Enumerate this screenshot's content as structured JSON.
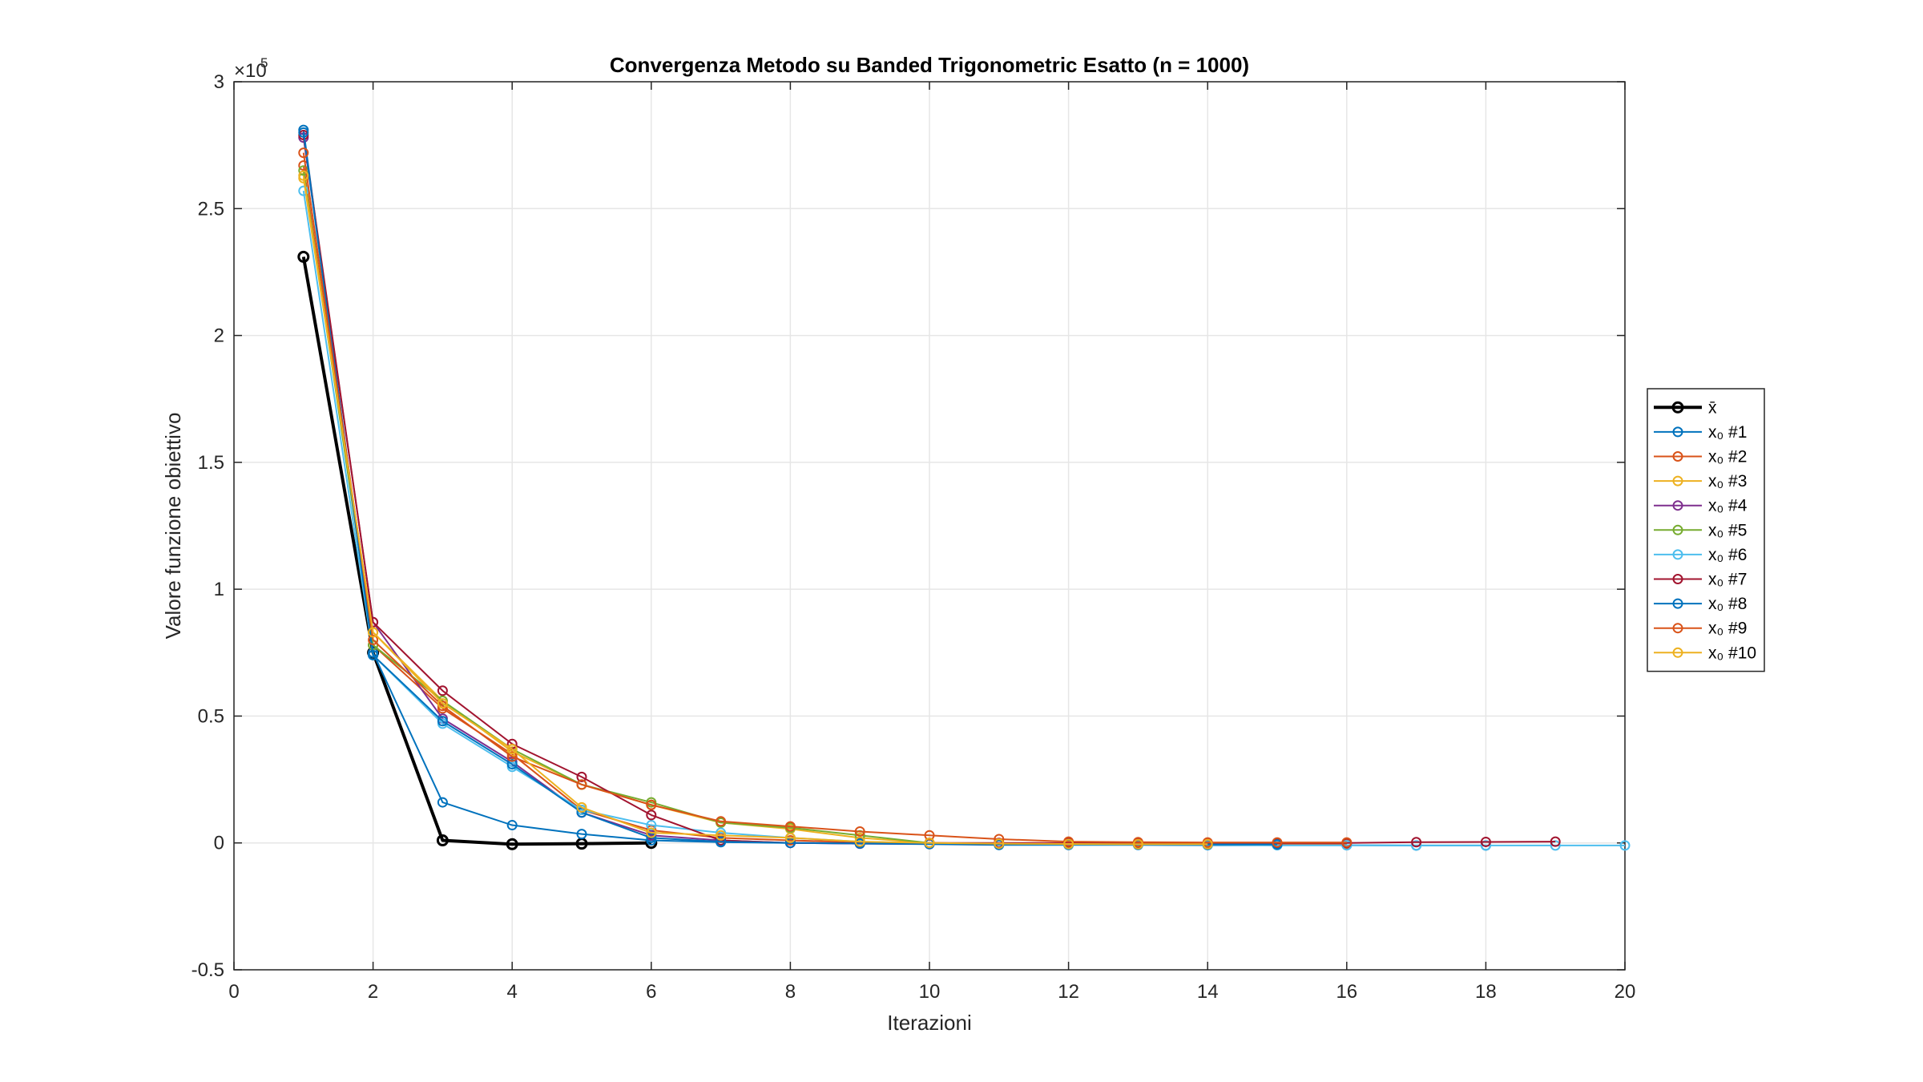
{
  "chart_data": {
    "type": "line",
    "title": "Convergenza Metodo su Banded Trigonometric Esatto (n = 1000)",
    "xlabel": "Iterazioni",
    "ylabel": "Valore funzione obiettivo",
    "y_exponent_label": "×10",
    "y_exponent_power": "5",
    "xlim": [
      0,
      20
    ],
    "ylim": [
      -0.5,
      3
    ],
    "xticks": [
      "0",
      "2",
      "4",
      "6",
      "8",
      "10",
      "12",
      "14",
      "16",
      "18",
      "20"
    ],
    "yticks": [
      "-0.5",
      "0",
      "0.5",
      "1",
      "1.5",
      "2",
      "2.5",
      "3"
    ],
    "y_scale_note": "values in units of 1e5",
    "grid": true,
    "legend_position": "outside-right",
    "series": [
      {
        "name": "x̄",
        "color": "#000000",
        "bold": true,
        "x": [
          1,
          2,
          3,
          4,
          5,
          6
        ],
        "y": [
          2.31,
          0.75,
          0.01,
          -0.005,
          -0.003,
          0.0
        ]
      },
      {
        "name": "x₀ #1",
        "color": "#0072BD",
        "x": [
          1,
          2,
          3,
          4,
          5,
          6,
          7,
          8,
          9,
          10,
          11,
          12,
          13,
          14,
          15,
          16,
          17,
          18
        ],
        "y": [
          2.81,
          0.75,
          0.16,
          0.07,
          0.035,
          0.01,
          0.003,
          0.0,
          -0.003,
          -0.005,
          -0.008,
          -0.008,
          -0.008,
          -0.009,
          -0.009,
          -0.009,
          -0.01,
          -0.01
        ]
      },
      {
        "name": "x₀ #2",
        "color": "#D95319",
        "x": [
          1,
          2,
          3,
          4,
          5,
          6,
          7,
          8,
          9,
          10,
          11,
          12,
          13,
          14,
          15,
          16
        ],
        "y": [
          2.67,
          0.78,
          0.53,
          0.35,
          0.13,
          0.05,
          0.02,
          0.01,
          0.003,
          0.0,
          -0.003,
          -0.004,
          -0.005,
          -0.005,
          -0.005,
          -0.005
        ]
      },
      {
        "name": "x₀ #3",
        "color": "#EDB120",
        "x": [
          1,
          2,
          3,
          4,
          5,
          6,
          7,
          8,
          9,
          10,
          11,
          12,
          13,
          14,
          15
        ],
        "y": [
          2.62,
          0.83,
          0.56,
          0.36,
          0.23,
          0.15,
          0.08,
          0.055,
          0.02,
          0.0,
          -0.003,
          -0.004,
          -0.005,
          -0.005,
          -0.005
        ]
      },
      {
        "name": "x₀ #4",
        "color": "#7E2F8E",
        "x": [
          1,
          2,
          3,
          4,
          5,
          6,
          7,
          8,
          9,
          10,
          11,
          12,
          13,
          14
        ],
        "y": [
          2.78,
          0.87,
          0.49,
          0.32,
          0.12,
          0.03,
          0.01,
          0.0,
          -0.003,
          -0.004,
          -0.005,
          -0.005,
          -0.005,
          -0.005
        ]
      },
      {
        "name": "x₀ #5",
        "color": "#77AC30",
        "x": [
          1,
          2,
          3,
          4,
          5,
          6,
          7,
          8,
          9,
          10,
          11,
          12,
          13,
          14
        ],
        "y": [
          2.65,
          0.78,
          0.56,
          0.37,
          0.23,
          0.16,
          0.08,
          0.06,
          0.03,
          0.0,
          -0.005,
          -0.006,
          -0.006,
          -0.007
        ]
      },
      {
        "name": "x₀ #6",
        "color": "#4DBEEE",
        "x": [
          1,
          2,
          3,
          4,
          5,
          6,
          7,
          8,
          9,
          10,
          11,
          12,
          13,
          14,
          15,
          16,
          17,
          18,
          19,
          20
        ],
        "y": [
          2.57,
          0.74,
          0.47,
          0.3,
          0.13,
          0.07,
          0.04,
          0.02,
          0.005,
          -0.002,
          -0.005,
          -0.006,
          -0.007,
          -0.008,
          -0.009,
          -0.009,
          -0.01,
          -0.01,
          -0.01,
          -0.01
        ]
      },
      {
        "name": "x₀ #7",
        "color": "#A2142F",
        "x": [
          1,
          2,
          3,
          4,
          5,
          6,
          7,
          8,
          9,
          10,
          11,
          12,
          13,
          14,
          15,
          16,
          17,
          18,
          19
        ],
        "y": [
          2.79,
          0.87,
          0.6,
          0.39,
          0.26,
          0.11,
          0.01,
          0.0,
          0.0,
          0.0,
          0.0,
          0.0,
          0.0,
          0.0,
          0.0,
          0.0,
          0.003,
          0.004,
          0.005
        ]
      },
      {
        "name": "x₀ #8",
        "color": "#0072BD",
        "x": [
          1,
          2,
          3,
          4,
          5,
          6,
          7,
          8,
          9,
          10,
          11,
          12,
          13,
          14,
          15
        ],
        "y": [
          2.8,
          0.74,
          0.48,
          0.31,
          0.12,
          0.02,
          0.005,
          0.0,
          -0.002,
          -0.004,
          -0.005,
          -0.005,
          -0.006,
          -0.006,
          -0.006
        ]
      },
      {
        "name": "x₀ #9",
        "color": "#D95319",
        "x": [
          1,
          2,
          3,
          4,
          5,
          6,
          7,
          8,
          9,
          10,
          11,
          12,
          13,
          14,
          15,
          16
        ],
        "y": [
          2.72,
          0.8,
          0.54,
          0.34,
          0.23,
          0.15,
          0.085,
          0.065,
          0.045,
          0.03,
          0.015,
          0.005,
          0.003,
          0.002,
          0.002,
          0.002
        ]
      },
      {
        "name": "x₀ #10",
        "color": "#EDB120",
        "x": [
          1,
          2,
          3,
          4,
          5,
          6,
          7,
          8,
          9,
          10,
          11,
          12,
          13,
          14
        ],
        "y": [
          2.63,
          0.83,
          0.55,
          0.37,
          0.14,
          0.04,
          0.03,
          0.02,
          0.005,
          0.0,
          -0.003,
          -0.004,
          -0.005,
          -0.005
        ]
      }
    ]
  }
}
